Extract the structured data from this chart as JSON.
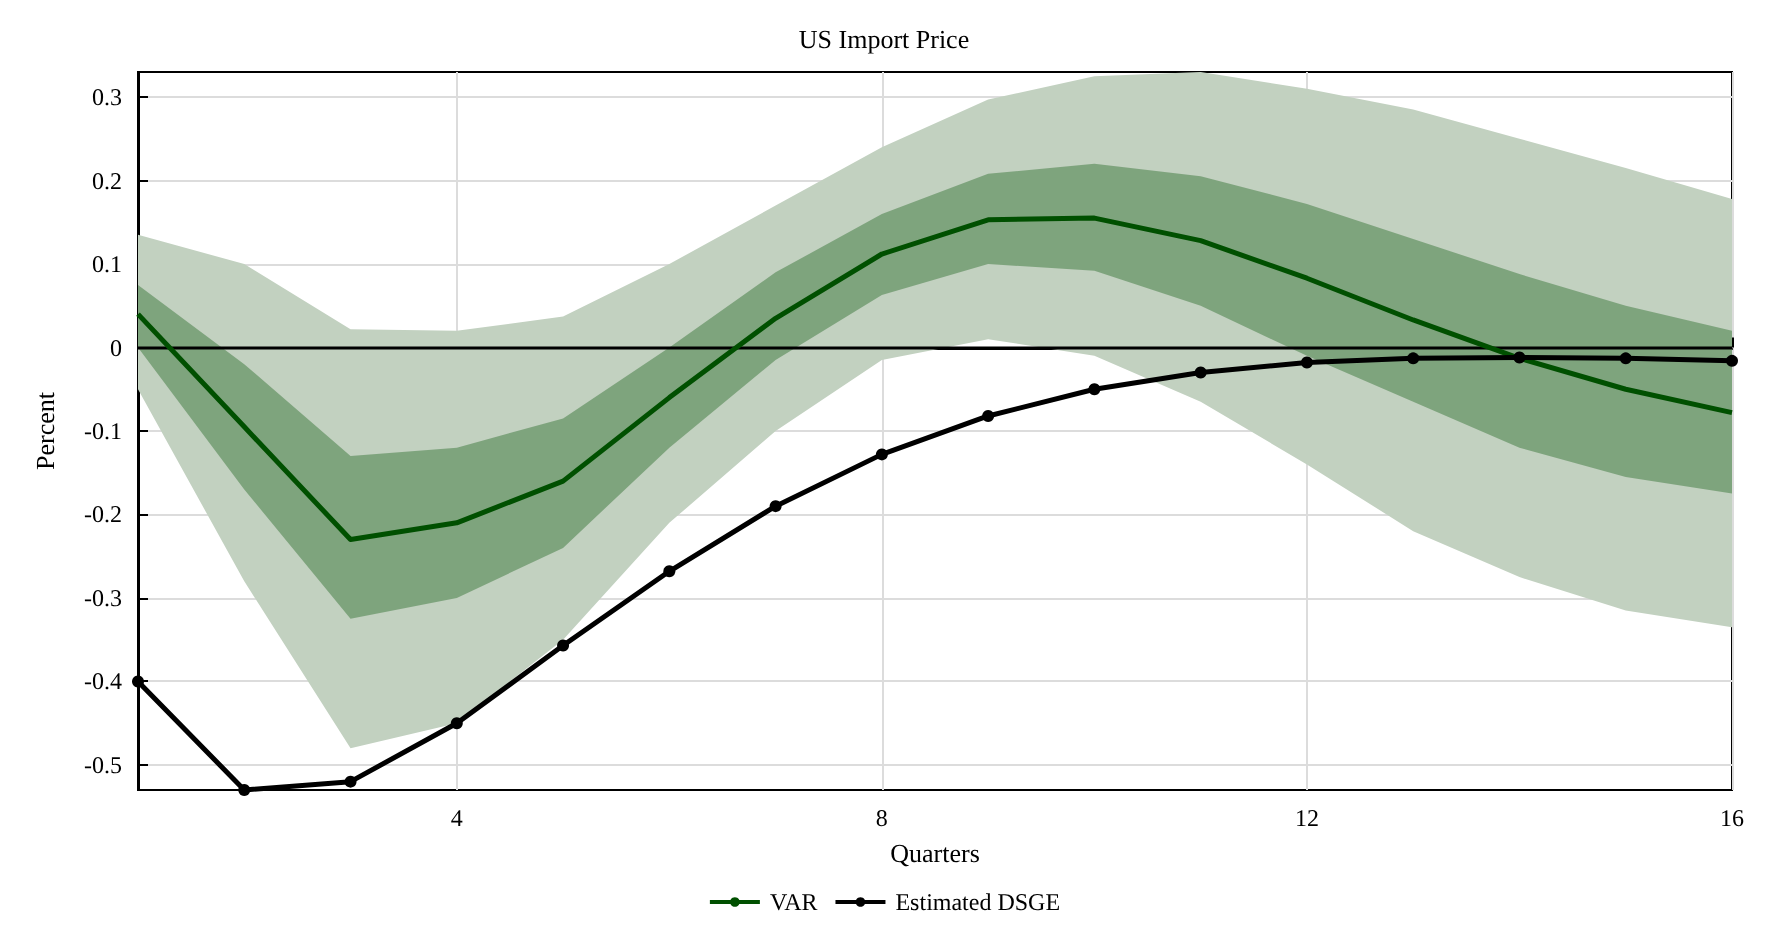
{
  "chart_data": {
    "type": "line",
    "title": "US Import Price",
    "xlabel": "Quarters",
    "ylabel": "Percent",
    "x": [
      1,
      2,
      3,
      4,
      5,
      6,
      7,
      8,
      9,
      10,
      11,
      12,
      13,
      14,
      15,
      16
    ],
    "xlim": [
      1,
      16
    ],
    "xticks": [
      4,
      8,
      12,
      16
    ],
    "ylim": [
      -0.53,
      0.33
    ],
    "yticks": [
      -0.5,
      -0.4,
      -0.3,
      -0.2,
      -0.1,
      0,
      0.1,
      0.2,
      0.3
    ],
    "grid": true,
    "legend": "bottom",
    "ref_lines": [
      {
        "axis": "y",
        "value": 0,
        "color": "#000000"
      }
    ],
    "series": [
      {
        "color": "#c2d1c0",
        "values": [
          null,
          null,
          null,
          null,
          null,
          null,
          null,
          null,
          null,
          null,
          null,
          null,
          null,
          null,
          null,
          null
        ],
        "lower": [
          -0.05,
          -0.28,
          -0.48,
          -0.45,
          -0.35,
          -0.21,
          -0.1,
          -0.015,
          0.01,
          -0.01,
          -0.065,
          -0.14,
          -0.22,
          -0.275,
          -0.315,
          -0.335
        ],
        "upper": [
          0.135,
          0.1,
          0.022,
          0.02,
          0.037,
          0.1,
          0.17,
          0.24,
          0.297,
          0.325,
          0.33,
          0.31,
          0.285,
          0.25,
          0.215,
          0.178
        ]
      },
      {
        "name": "VAR",
        "color": "#005000",
        "marker": "none",
        "values": [
          0.04,
          -0.095,
          -0.23,
          -0.21,
          -0.16,
          -0.06,
          0.035,
          0.112,
          0.153,
          0.155,
          0.128,
          0.083,
          0.033,
          -0.013,
          -0.05,
          -0.078
        ],
        "lower": [
          0.0,
          -0.17,
          -0.325,
          -0.3,
          -0.24,
          -0.12,
          -0.015,
          0.063,
          0.1,
          0.092,
          0.05,
          -0.01,
          -0.065,
          -0.12,
          -0.155,
          -0.175
        ],
        "upper": [
          0.075,
          -0.02,
          -0.13,
          -0.12,
          -0.085,
          0.0,
          0.09,
          0.16,
          0.208,
          0.22,
          0.205,
          0.172,
          0.13,
          0.088,
          0.05,
          0.02
        ]
      },
      {
        "name": "Estimated DSGE",
        "color": "#000000",
        "marker": "circle",
        "values": [
          -0.4,
          -0.53,
          -0.52,
          -0.45,
          -0.357,
          -0.268,
          -0.19,
          -0.128,
          -0.082,
          -0.05,
          -0.03,
          -0.018,
          -0.013,
          -0.012,
          -0.013,
          -0.016
        ]
      }
    ]
  }
}
